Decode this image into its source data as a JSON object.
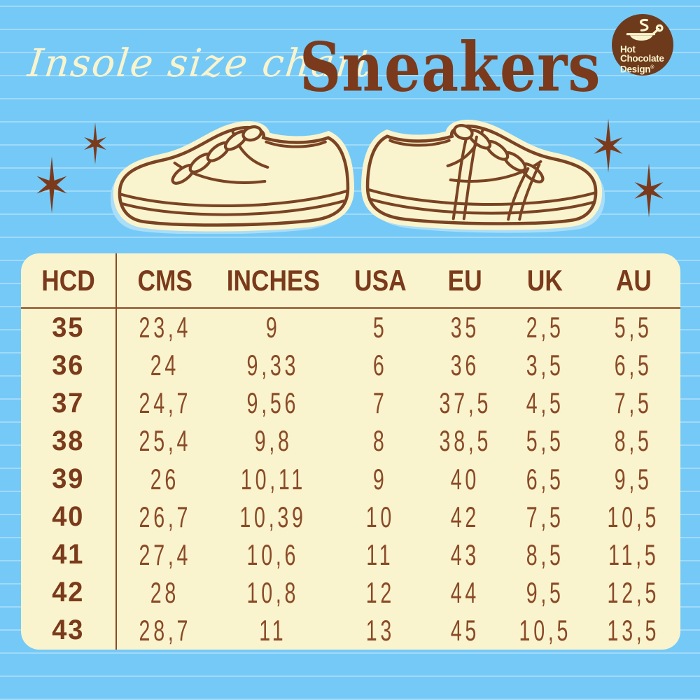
{
  "subtitle": "Insole size chart",
  "title": "Sneakers",
  "logo": {
    "lines": [
      "Hot",
      "Chocolate",
      "Design"
    ],
    "reg": "®",
    "icon": "coffee-cup-icon"
  },
  "colors": {
    "background": "#75c9f7",
    "cream": "#f9f4cd",
    "brown_dark": "#7a3a1b",
    "brown_text": "#8a4a28",
    "logo_brown": "#6e3a1c",
    "outline_brown": "#7a4323",
    "shadow_blue": "#a9ddf8"
  },
  "decor": {
    "stars": "sparkle-star-icon",
    "illustrations": [
      "left-sneaker-illustration",
      "right-sneaker-illustration"
    ]
  },
  "chart_data": {
    "type": "table",
    "title": "Insole size chart — Sneakers",
    "columns": [
      "HCD",
      "CMS",
      "INCHES",
      "USA",
      "EU",
      "UK",
      "AU"
    ],
    "rows": [
      [
        "35",
        "23,4",
        "9",
        "5",
        "35",
        "2,5",
        "5,5"
      ],
      [
        "36",
        "24",
        "9,33",
        "6",
        "36",
        "3,5",
        "6,5"
      ],
      [
        "37",
        "24,7",
        "9,56",
        "7",
        "37,5",
        "4,5",
        "7,5"
      ],
      [
        "38",
        "25,4",
        "9,8",
        "8",
        "38,5",
        "5,5",
        "8,5"
      ],
      [
        "39",
        "26",
        "10,11",
        "9",
        "40",
        "6,5",
        "9,5"
      ],
      [
        "40",
        "26,7",
        "10,39",
        "10",
        "42",
        "7,5",
        "10,5"
      ],
      [
        "41",
        "27,4",
        "10,6",
        "11",
        "43",
        "8,5",
        "11,5"
      ],
      [
        "42",
        "28",
        "10,8",
        "12",
        "44",
        "9,5",
        "12,5"
      ],
      [
        "43",
        "28,7",
        "11",
        "13",
        "45",
        "10,5",
        "13,5"
      ]
    ]
  }
}
